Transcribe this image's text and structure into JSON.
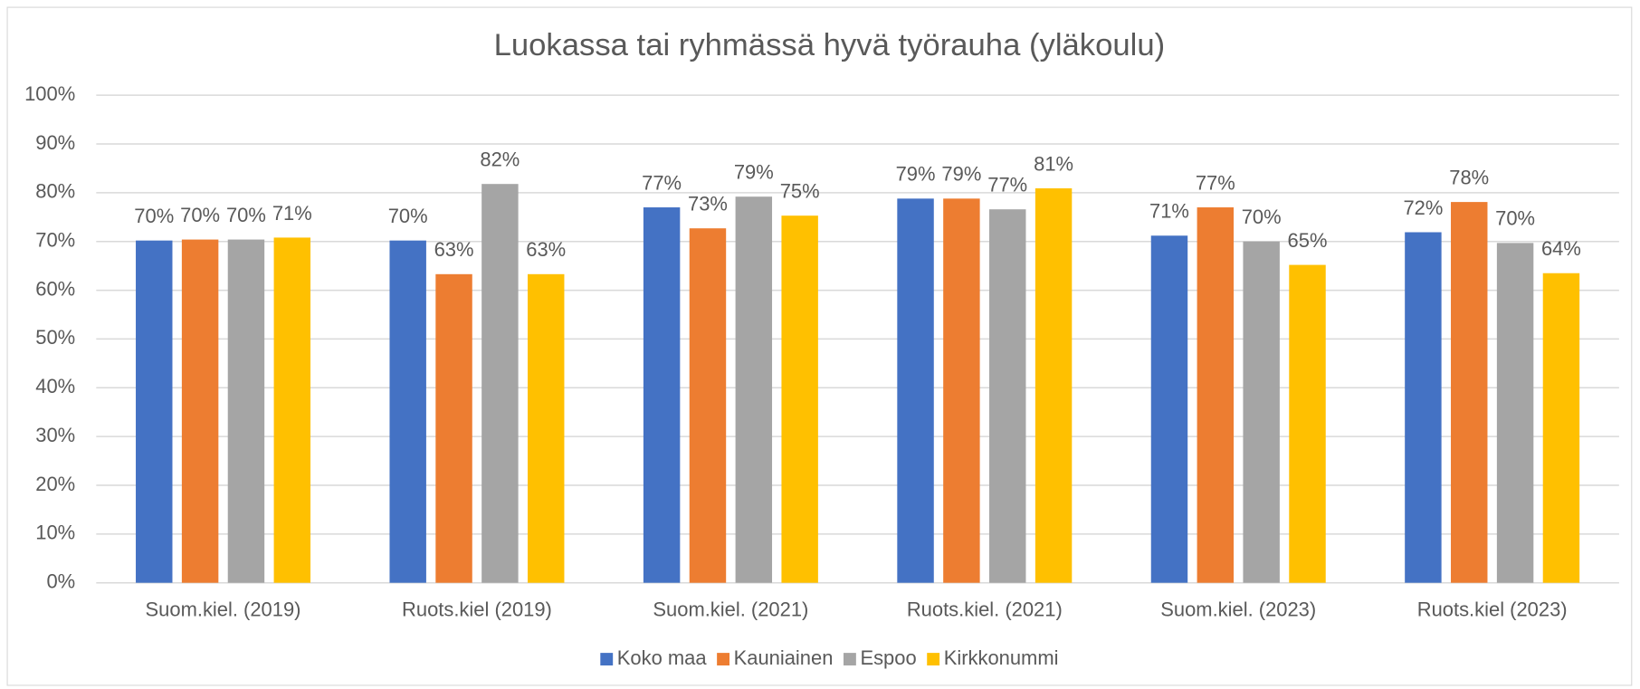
{
  "chart_data": {
    "type": "bar",
    "title": "Luokassa tai ryhmässä hyvä työrauha (yläkoulu)",
    "categories": [
      "Suom.kiel. (2019)",
      "Ruots.kiel (2019)",
      "Suom.kiel. (2021)",
      "Ruots.kiel. (2021)",
      "Suom.kiel. (2023)",
      "Ruots.kiel (2023)"
    ],
    "series": [
      {
        "name": "Koko maa",
        "color": "#4472c4",
        "values": [
          70.2,
          70.2,
          77.0,
          78.8,
          71.2,
          71.9
        ],
        "value_labels": [
          "70%",
          "70%",
          "77%",
          "79%",
          "71%",
          "72%"
        ]
      },
      {
        "name": "Kauniainen",
        "color": "#ed7d31",
        "values": [
          70.4,
          63.3,
          72.7,
          78.8,
          77.0,
          78.1
        ],
        "value_labels": [
          "70%",
          "63%",
          "73%",
          "79%",
          "77%",
          "78%"
        ]
      },
      {
        "name": "Espoo",
        "color": "#a5a5a5",
        "values": [
          70.4,
          81.8,
          79.2,
          76.6,
          70.0,
          69.7
        ],
        "value_labels": [
          "70%",
          "82%",
          "79%",
          "77%",
          "70%",
          "70%"
        ]
      },
      {
        "name": "Kirkkonummi",
        "color": "#ffc000",
        "values": [
          70.8,
          63.3,
          75.3,
          80.9,
          65.2,
          63.5
        ],
        "value_labels": [
          "71%",
          "63%",
          "75%",
          "81%",
          "65%",
          "64%"
        ]
      }
    ],
    "ylim": [
      0,
      100
    ],
    "yticks": [
      {
        "value": 0,
        "label": "0%"
      },
      {
        "value": 10,
        "label": "10%"
      },
      {
        "value": 20,
        "label": "20%"
      },
      {
        "value": 30,
        "label": "30%"
      },
      {
        "value": 40,
        "label": "40%"
      },
      {
        "value": 50,
        "label": "50%"
      },
      {
        "value": 60,
        "label": "60%"
      },
      {
        "value": 70,
        "label": "70%"
      },
      {
        "value": 80,
        "label": "80%"
      },
      {
        "value": 90,
        "label": "90%"
      },
      {
        "value": 100,
        "label": "100%"
      }
    ],
    "grid": true,
    "legend": "bottom"
  }
}
